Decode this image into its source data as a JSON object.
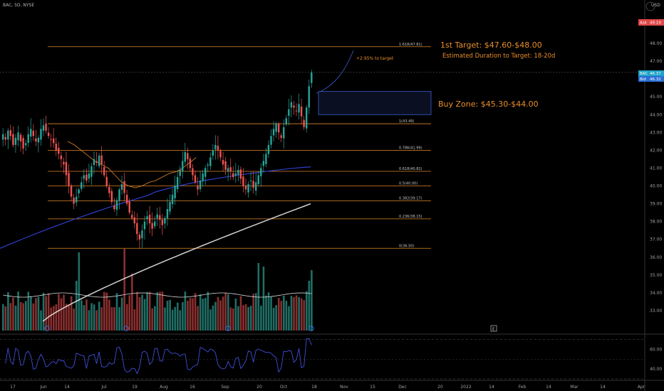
{
  "header": {
    "title": "BAC, 5D, NYSE",
    "currency": "USD"
  },
  "price_tags": {
    "ask": {
      "label": "Ask",
      "value": "49.19",
      "color": "#e04848"
    },
    "last": {
      "label": "BAC",
      "value": "46.37",
      "color": "#1fa3c6"
    },
    "bid": {
      "label": "Bid",
      "value": "46.32",
      "color": "#2c6fd6"
    }
  },
  "annotations": {
    "target_title": "1st Target: $47.60-$48.00",
    "target_duration": "Estimated Duration to Target: 18-20d",
    "pct_to_target": "+2.95% to target",
    "buy_zone": "Buy Zone: $45.30-$44.00"
  },
  "colors": {
    "up": "#26a69a",
    "down": "#ef5350",
    "fib": "#e0862a",
    "annotation": "#e88e2c",
    "ma_fast": "#2e3fc8",
    "ma_slow": "#e8e8e8",
    "ma_mid": "#e0862a",
    "vol_ma": "#d8d8d8",
    "rsi": "#3f4ed6",
    "buy_zone_border": "#3a5fd0"
  },
  "chart_data": {
    "type": "candlestick",
    "title": "BAC, 5D, NYSE",
    "x_ticks": [
      "17",
      "Jun",
      "14",
      "Jul",
      "19",
      "Aug",
      "16",
      "Sep",
      "20",
      "Oct",
      "18",
      "Nov",
      "15",
      "Dec",
      "20",
      "2022",
      "14",
      "Feb",
      "14",
      "Mar",
      "14",
      "Apr"
    ],
    "y_ticks": [
      "48.00",
      "47.00",
      "46.00",
      "45.00",
      "44.00",
      "43.00",
      "42.00",
      "41.00",
      "40.00",
      "39.00",
      "38.00",
      "37.00",
      "36.00",
      "35.00",
      "34.00",
      "33.00"
    ],
    "ylim": [
      32.3,
      49.2
    ],
    "fib_levels": [
      {
        "label": "1.618(47.81)",
        "value": 47.81
      },
      {
        "label": "1(43.49)",
        "value": 43.49
      },
      {
        "label": "0.786(41.99)",
        "value": 41.99
      },
      {
        "label": "0.618(40.82)",
        "value": 40.82
      },
      {
        "label": "0.5(40.00)",
        "value": 40.0
      },
      {
        "label": "0.382(39.17)",
        "value": 39.17
      },
      {
        "label": "0.236(38.15)",
        "value": 38.15
      },
      {
        "label": "0(36.50)",
        "value": 36.5
      }
    ],
    "buy_zone": [
      44.0,
      45.3
    ],
    "target_zone": [
      47.6,
      48.0
    ],
    "current_price": 46.37,
    "closes": [
      42.9,
      42.6,
      43.1,
      42.8,
      42.3,
      42.7,
      43.0,
      42.5,
      42.1,
      42.4,
      42.9,
      43.2,
      42.8,
      42.5,
      42.7,
      43.2,
      43.4,
      43.1,
      42.8,
      42.6,
      42.4,
      42.0,
      41.8,
      41.5,
      41.2,
      40.6,
      40.0,
      39.4,
      39.0,
      39.4,
      39.8,
      40.2,
      40.6,
      40.3,
      40.7,
      41.1,
      41.5,
      41.3,
      41.7,
      41.2,
      40.6,
      40.0,
      39.6,
      39.1,
      38.7,
      39.2,
      39.8,
      40.1,
      39.6,
      39.0,
      38.5,
      38.2,
      37.9,
      37.3,
      37.0,
      37.5,
      38.0,
      38.3,
      37.9,
      37.6,
      38.0,
      38.4,
      38.1,
      37.8,
      38.2,
      38.7,
      39.1,
      39.5,
      40.0,
      40.5,
      40.9,
      41.4,
      41.9,
      41.5,
      41.0,
      40.6,
      40.2,
      39.8,
      40.3,
      40.7,
      41.0,
      41.2,
      41.6,
      42.0,
      42.3,
      42.0,
      41.6,
      41.2,
      40.9,
      41.0,
      40.8,
      40.5,
      40.7,
      40.9,
      40.4,
      40.0,
      39.8,
      40.1,
      40.3,
      39.9,
      40.2,
      40.6,
      41.0,
      41.4,
      41.8,
      42.3,
      42.8,
      43.2,
      43.5,
      43.0,
      42.7,
      43.3,
      43.8,
      44.3,
      44.7,
      44.4,
      44.2,
      44.6,
      43.9,
      43.3,
      44.4,
      45.6,
      46.37
    ],
    "vwap_ma": {
      "start": 36.5,
      "end": 41.1
    },
    "sma200": {
      "start": 32.4,
      "end": 39.0
    },
    "rsi": {
      "ticks": [
        "60.00",
        "40.00"
      ],
      "lim": [
        30,
        72
      ]
    }
  }
}
